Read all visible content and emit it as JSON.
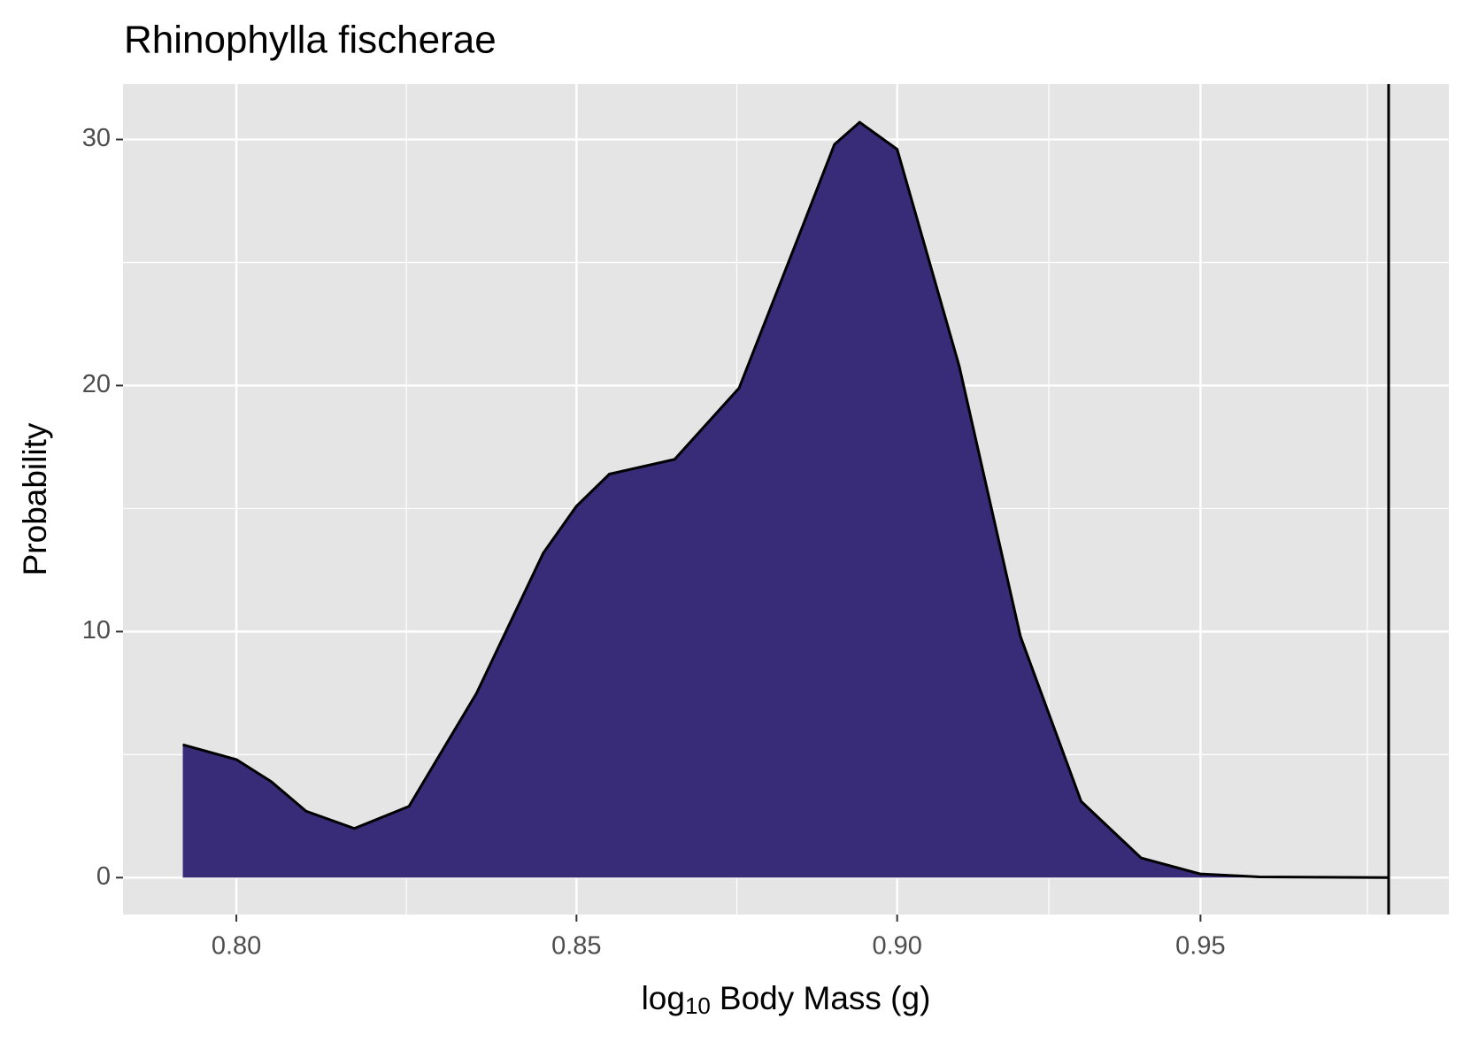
{
  "chart_data": {
    "type": "density",
    "title": "Rhinophylla fischerae",
    "x_label": {
      "base": "log",
      "subscript": "10",
      "rest": "Body Mass (g)"
    },
    "y_label": "Probability",
    "x": [
      0.7924,
      0.8,
      0.805,
      0.81,
      0.817,
      0.825,
      0.835,
      0.845,
      0.85,
      0.855,
      0.865,
      0.875,
      0.885,
      0.89,
      0.894,
      0.9,
      0.91,
      0.92,
      0.93,
      0.94,
      0.95,
      0.96,
      0.9824
    ],
    "values": [
      5.4,
      4.8,
      3.9,
      2.7,
      2.0,
      2.9,
      7.5,
      13.2,
      15.1,
      16.4,
      17.0,
      19.9,
      26.5,
      29.8,
      30.7,
      29.6,
      20.8,
      9.8,
      3.1,
      0.8,
      0.15,
      0.03,
      0.0
    ],
    "color": "#382b78",
    "vline": 0.9824,
    "xscale": "log",
    "xlim": [
      0.784,
      0.993
    ],
    "ylim": [
      -1.5,
      32.25
    ],
    "xticks": [
      {
        "value": 0.8,
        "label": "0.80"
      },
      0.85,
      {
        "value": 0.9,
        "label": "0.90"
      },
      0.95
    ],
    "yticks": [
      0,
      10,
      20,
      30
    ],
    "grid": true
  }
}
